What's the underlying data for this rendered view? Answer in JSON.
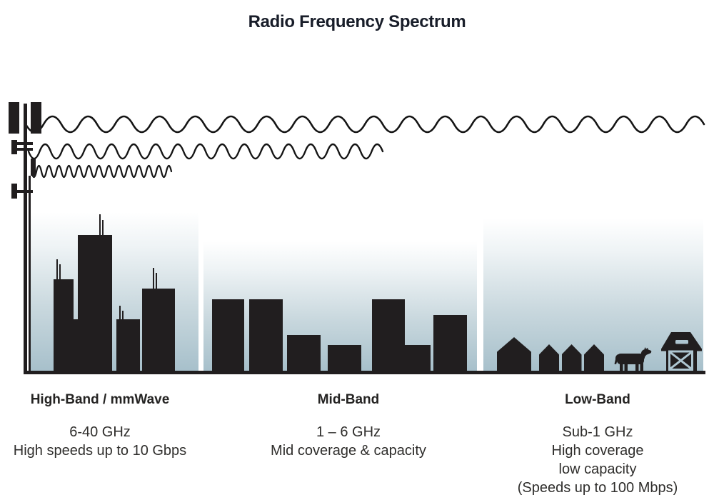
{
  "title": "Radio Frequency Spectrum",
  "tower": {
    "icon": "cell-tower-icon"
  },
  "waves": [
    {
      "icon": "long-wavelength-wave-icon"
    },
    {
      "icon": "medium-wavelength-wave-icon"
    },
    {
      "icon": "short-wavelength-wave-icon"
    }
  ],
  "bands": [
    {
      "label": "High-Band / mmWave",
      "lines": [
        "6-40 GHz",
        "High speeds up to 10 Gbps"
      ],
      "icon": "city-skyline-icon"
    },
    {
      "label": "Mid-Band",
      "lines": [
        "1 – 6 GHz",
        "Mid coverage & capacity"
      ],
      "icon": "midrise-buildings-icon"
    },
    {
      "label": "Low-Band",
      "lines": [
        "Sub-1 GHz",
        "High coverage",
        "low capacity",
        "(Speeds up to 100 Mbps)"
      ],
      "icon": "farm-scene-icon"
    }
  ],
  "colors": {
    "ink": "#211e1f",
    "sky_top": "#ffffff",
    "sky_bottom": "#a7c0cb",
    "text": "#2f2e2c",
    "title": "#181d29"
  }
}
